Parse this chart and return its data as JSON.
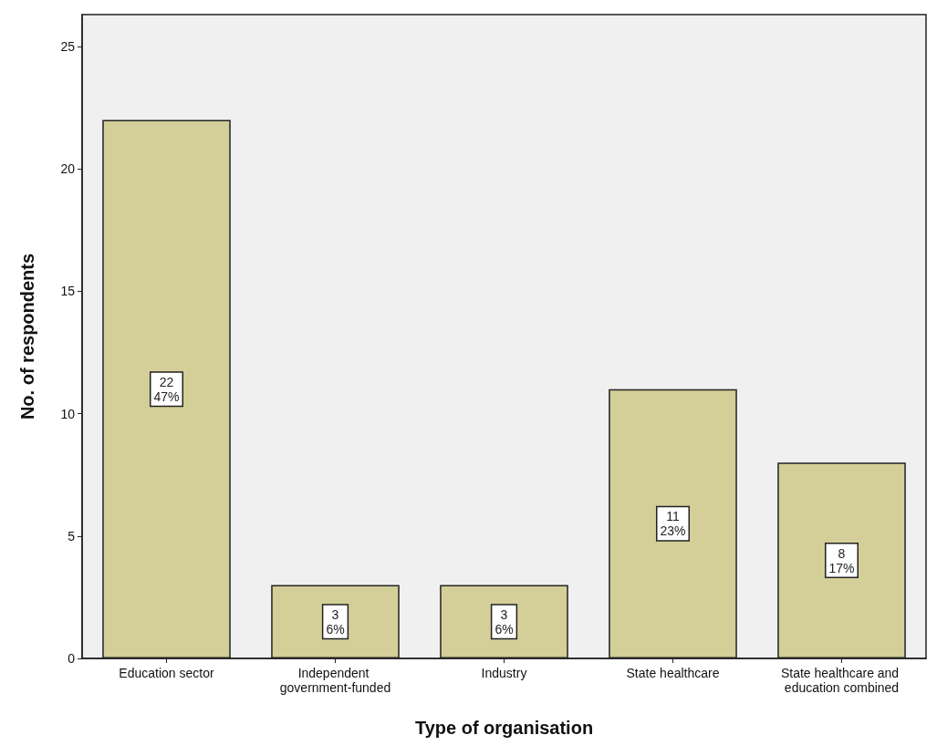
{
  "chart_data": {
    "type": "bar",
    "xlabel": "Type of organisation",
    "ylabel": "No. of respondents",
    "categories": [
      "Education sector",
      "Independent government-funded",
      "Industry",
      "State healthcare",
      "State healthcare and education combined"
    ],
    "values": [
      22,
      3,
      3,
      11,
      8
    ],
    "value_labels": [
      "22\n47%",
      "3\n6%",
      "3\n6%",
      "11\n23%",
      "8\n17%"
    ],
    "color": "#d4cf98",
    "ylim": [
      0,
      26.3
    ],
    "yticks": [
      0,
      5,
      10,
      15,
      20,
      25
    ],
    "grid": false
  }
}
